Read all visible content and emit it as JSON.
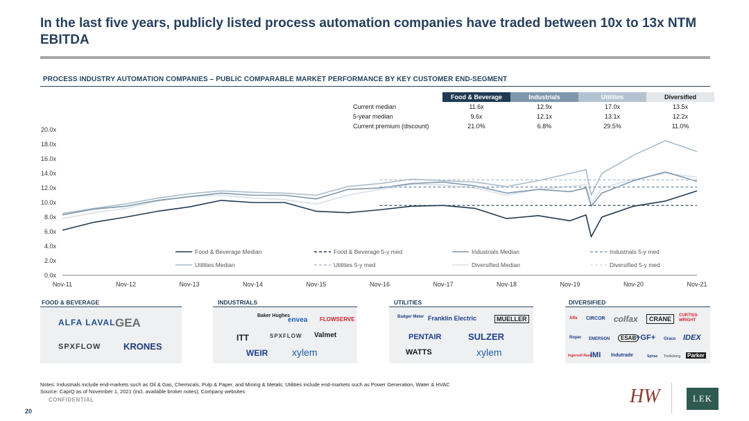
{
  "header": {
    "title": "In the last five years, publicly listed process automation companies have traded between 10x to 13x NTM EBITDA",
    "subtitle": "PROCESS INDUSTRY AUTOMATION COMPANIES – PUBLIC COMPARABLE MARKET PERFORMANCE BY KEY CUSTOMER END-SEGMENT"
  },
  "stats_table": {
    "columns": [
      "Food & Beverage",
      "Industrials",
      "Utilities",
      "Diversified"
    ],
    "rows": [
      {
        "label": "Current median",
        "values": [
          "11.6x",
          "12.9x",
          "17.0x",
          "13.5x"
        ]
      },
      {
        "label": "5-year median",
        "values": [
          "9.6x",
          "12.1x",
          "13.1x",
          "12.2x"
        ]
      },
      {
        "label": "Current premium (discount)",
        "values": [
          "21.0%",
          "6.8%",
          "29.5%",
          "11.0%"
        ]
      }
    ]
  },
  "colors": {
    "food_beverage": "#1f3a52",
    "industrials": "#7f97ad",
    "utilities": "#a9bccd",
    "diversified": "#d9e0e7"
  },
  "chart_data": {
    "type": "line",
    "x_tick_labels": [
      "Nov-11",
      "Nov-12",
      "Nov-13",
      "Nov-14",
      "Nov-15",
      "Nov-16",
      "Nov-17",
      "Nov-18",
      "Nov-19",
      "Nov-20",
      "Nov-21"
    ],
    "y_tick_labels": [
      "0.0x",
      "2.0x",
      "4.0x",
      "6.0x",
      "8.0x",
      "10.0x",
      "12.0x",
      "14.0x",
      "16.0x",
      "18.0x",
      "20.0x"
    ],
    "ylim": [
      0,
      20
    ],
    "x_range": [
      "2011-11",
      "2021-11"
    ],
    "grid": false,
    "legend_position": "bottom",
    "series": [
      {
        "name": "Food & Beverage Median",
        "style": "solid",
        "color": "#1f3a52",
        "x": [
          "2011-11",
          "2012-05",
          "2012-11",
          "2013-05",
          "2013-11",
          "2014-05",
          "2014-11",
          "2015-05",
          "2015-11",
          "2016-05",
          "2016-11",
          "2017-05",
          "2017-11",
          "2018-05",
          "2018-11",
          "2019-05",
          "2019-11",
          "2020-02",
          "2020-03",
          "2020-05",
          "2020-11",
          "2021-05",
          "2021-11"
        ],
        "y": [
          6.2,
          7.3,
          8.0,
          8.8,
          9.4,
          10.3,
          10.0,
          10.0,
          8.8,
          8.6,
          9.0,
          9.5,
          9.6,
          9.2,
          7.8,
          8.2,
          7.5,
          8.3,
          5.3,
          8.0,
          9.5,
          10.2,
          11.6
        ]
      },
      {
        "name": "Industrials Median",
        "style": "solid",
        "color": "#7f97ad",
        "x": [
          "2011-11",
          "2012-05",
          "2012-11",
          "2013-05",
          "2013-11",
          "2014-05",
          "2014-11",
          "2015-05",
          "2015-11",
          "2016-05",
          "2016-11",
          "2017-05",
          "2017-11",
          "2018-05",
          "2018-11",
          "2019-05",
          "2019-11",
          "2020-02",
          "2020-03",
          "2020-05",
          "2020-11",
          "2021-05",
          "2021-11"
        ],
        "y": [
          8.3,
          9.1,
          9.5,
          10.3,
          10.8,
          11.3,
          11.0,
          11.0,
          10.5,
          11.8,
          12.0,
          12.6,
          12.8,
          12.3,
          11.3,
          11.8,
          11.5,
          12.0,
          9.5,
          11.3,
          13.0,
          14.2,
          12.9
        ]
      },
      {
        "name": "Utilities Median",
        "style": "solid",
        "color": "#a9bccd",
        "x": [
          "2011-11",
          "2012-05",
          "2012-11",
          "2013-05",
          "2013-11",
          "2014-05",
          "2014-11",
          "2015-05",
          "2015-11",
          "2016-05",
          "2016-11",
          "2017-05",
          "2017-11",
          "2018-05",
          "2018-11",
          "2019-05",
          "2019-11",
          "2020-02",
          "2020-03",
          "2020-05",
          "2020-11",
          "2021-05",
          "2021-11"
        ],
        "y": [
          8.5,
          9.2,
          9.8,
          10.6,
          11.2,
          11.6,
          11.4,
          11.3,
          11.0,
          12.2,
          12.6,
          13.2,
          13.0,
          12.8,
          12.2,
          13.0,
          14.0,
          14.5,
          11.0,
          14.0,
          16.5,
          18.5,
          17.0
        ]
      },
      {
        "name": "Diversified Median",
        "style": "solid",
        "color": "#d9e0e7",
        "x": [
          "2011-11",
          "2012-05",
          "2012-11",
          "2013-05",
          "2013-11",
          "2014-05",
          "2014-11",
          "2015-05",
          "2015-11",
          "2016-05",
          "2016-11",
          "2017-05",
          "2017-11",
          "2018-05",
          "2018-11",
          "2019-05",
          "2019-11",
          "2020-02",
          "2020-03",
          "2020-05",
          "2020-11",
          "2021-05",
          "2021-11"
        ],
        "y": [
          7.8,
          8.6,
          9.2,
          10.2,
          10.8,
          11.0,
          10.6,
          10.4,
          9.8,
          11.0,
          11.8,
          12.5,
          12.4,
          12.0,
          11.0,
          11.8,
          12.2,
          12.5,
          9.8,
          12.0,
          13.2,
          14.0,
          13.5
        ]
      },
      {
        "name": "Food & Beverage 5-y med",
        "style": "dashed",
        "color": "#1f3a52",
        "x": [
          "2016-11",
          "2021-11"
        ],
        "y": [
          9.6,
          9.6
        ]
      },
      {
        "name": "Industrials 5-y med",
        "style": "dashed",
        "color": "#7f97ad",
        "x": [
          "2016-11",
          "2021-11"
        ],
        "y": [
          12.1,
          12.1
        ]
      },
      {
        "name": "Utilities 5-y med",
        "style": "dashed",
        "color": "#a9bccd",
        "x": [
          "2016-11",
          "2021-11"
        ],
        "y": [
          13.1,
          13.1
        ]
      },
      {
        "name": "Diversified 5-y med",
        "style": "dashed",
        "color": "#d9e0e7",
        "x": [
          "2016-11",
          "2021-11"
        ],
        "y": [
          12.2,
          12.2
        ]
      }
    ]
  },
  "segments": [
    {
      "title": "FOOD & BEVERAGE",
      "logos": [
        "ALFA LAVAL",
        "GEA",
        "SPXFLOW",
        "KRONES"
      ]
    },
    {
      "title": "INDUSTRIALS",
      "logos": [
        "Baker Hughes",
        "envea",
        "FLOWSERVE",
        "ITT",
        "SPXFLOW",
        "Valmet",
        "WEIR",
        "xylem"
      ]
    },
    {
      "title": "UTILITIES",
      "logos": [
        "Badger Meter",
        "Franklin Electric",
        "MUELLER",
        "PENTAIR",
        "SULZER",
        "WATTS",
        "xylem"
      ]
    },
    {
      "title": "DIVERSIFIED",
      "logos": [
        "Alfa",
        "CIRCOR",
        "colfax",
        "CRANE",
        "CURTISS-WRIGHT",
        "Roper",
        "EMERSON",
        "ESAB",
        "+GF+",
        "Graco",
        "IDEX",
        "Ingersoll Rand",
        "IMI",
        "Indutrade",
        "Spirax",
        "Trelleborg",
        "Parker"
      ]
    }
  ],
  "footer": {
    "notes": "Notes: Industrials include end-markets such as Oil & Gas, Chemicals, Pulp & Paper, and Mining & Metals; Utilities include end-markets such as Power Generation, Water & HVAC",
    "source": "Source: CapIQ as of November 1, 2021 (incl. available broker notes); Company websites",
    "confidential": "CONFIDENTIAL",
    "page_number": "20",
    "brand_left": "HW",
    "brand_right": "LEK"
  }
}
